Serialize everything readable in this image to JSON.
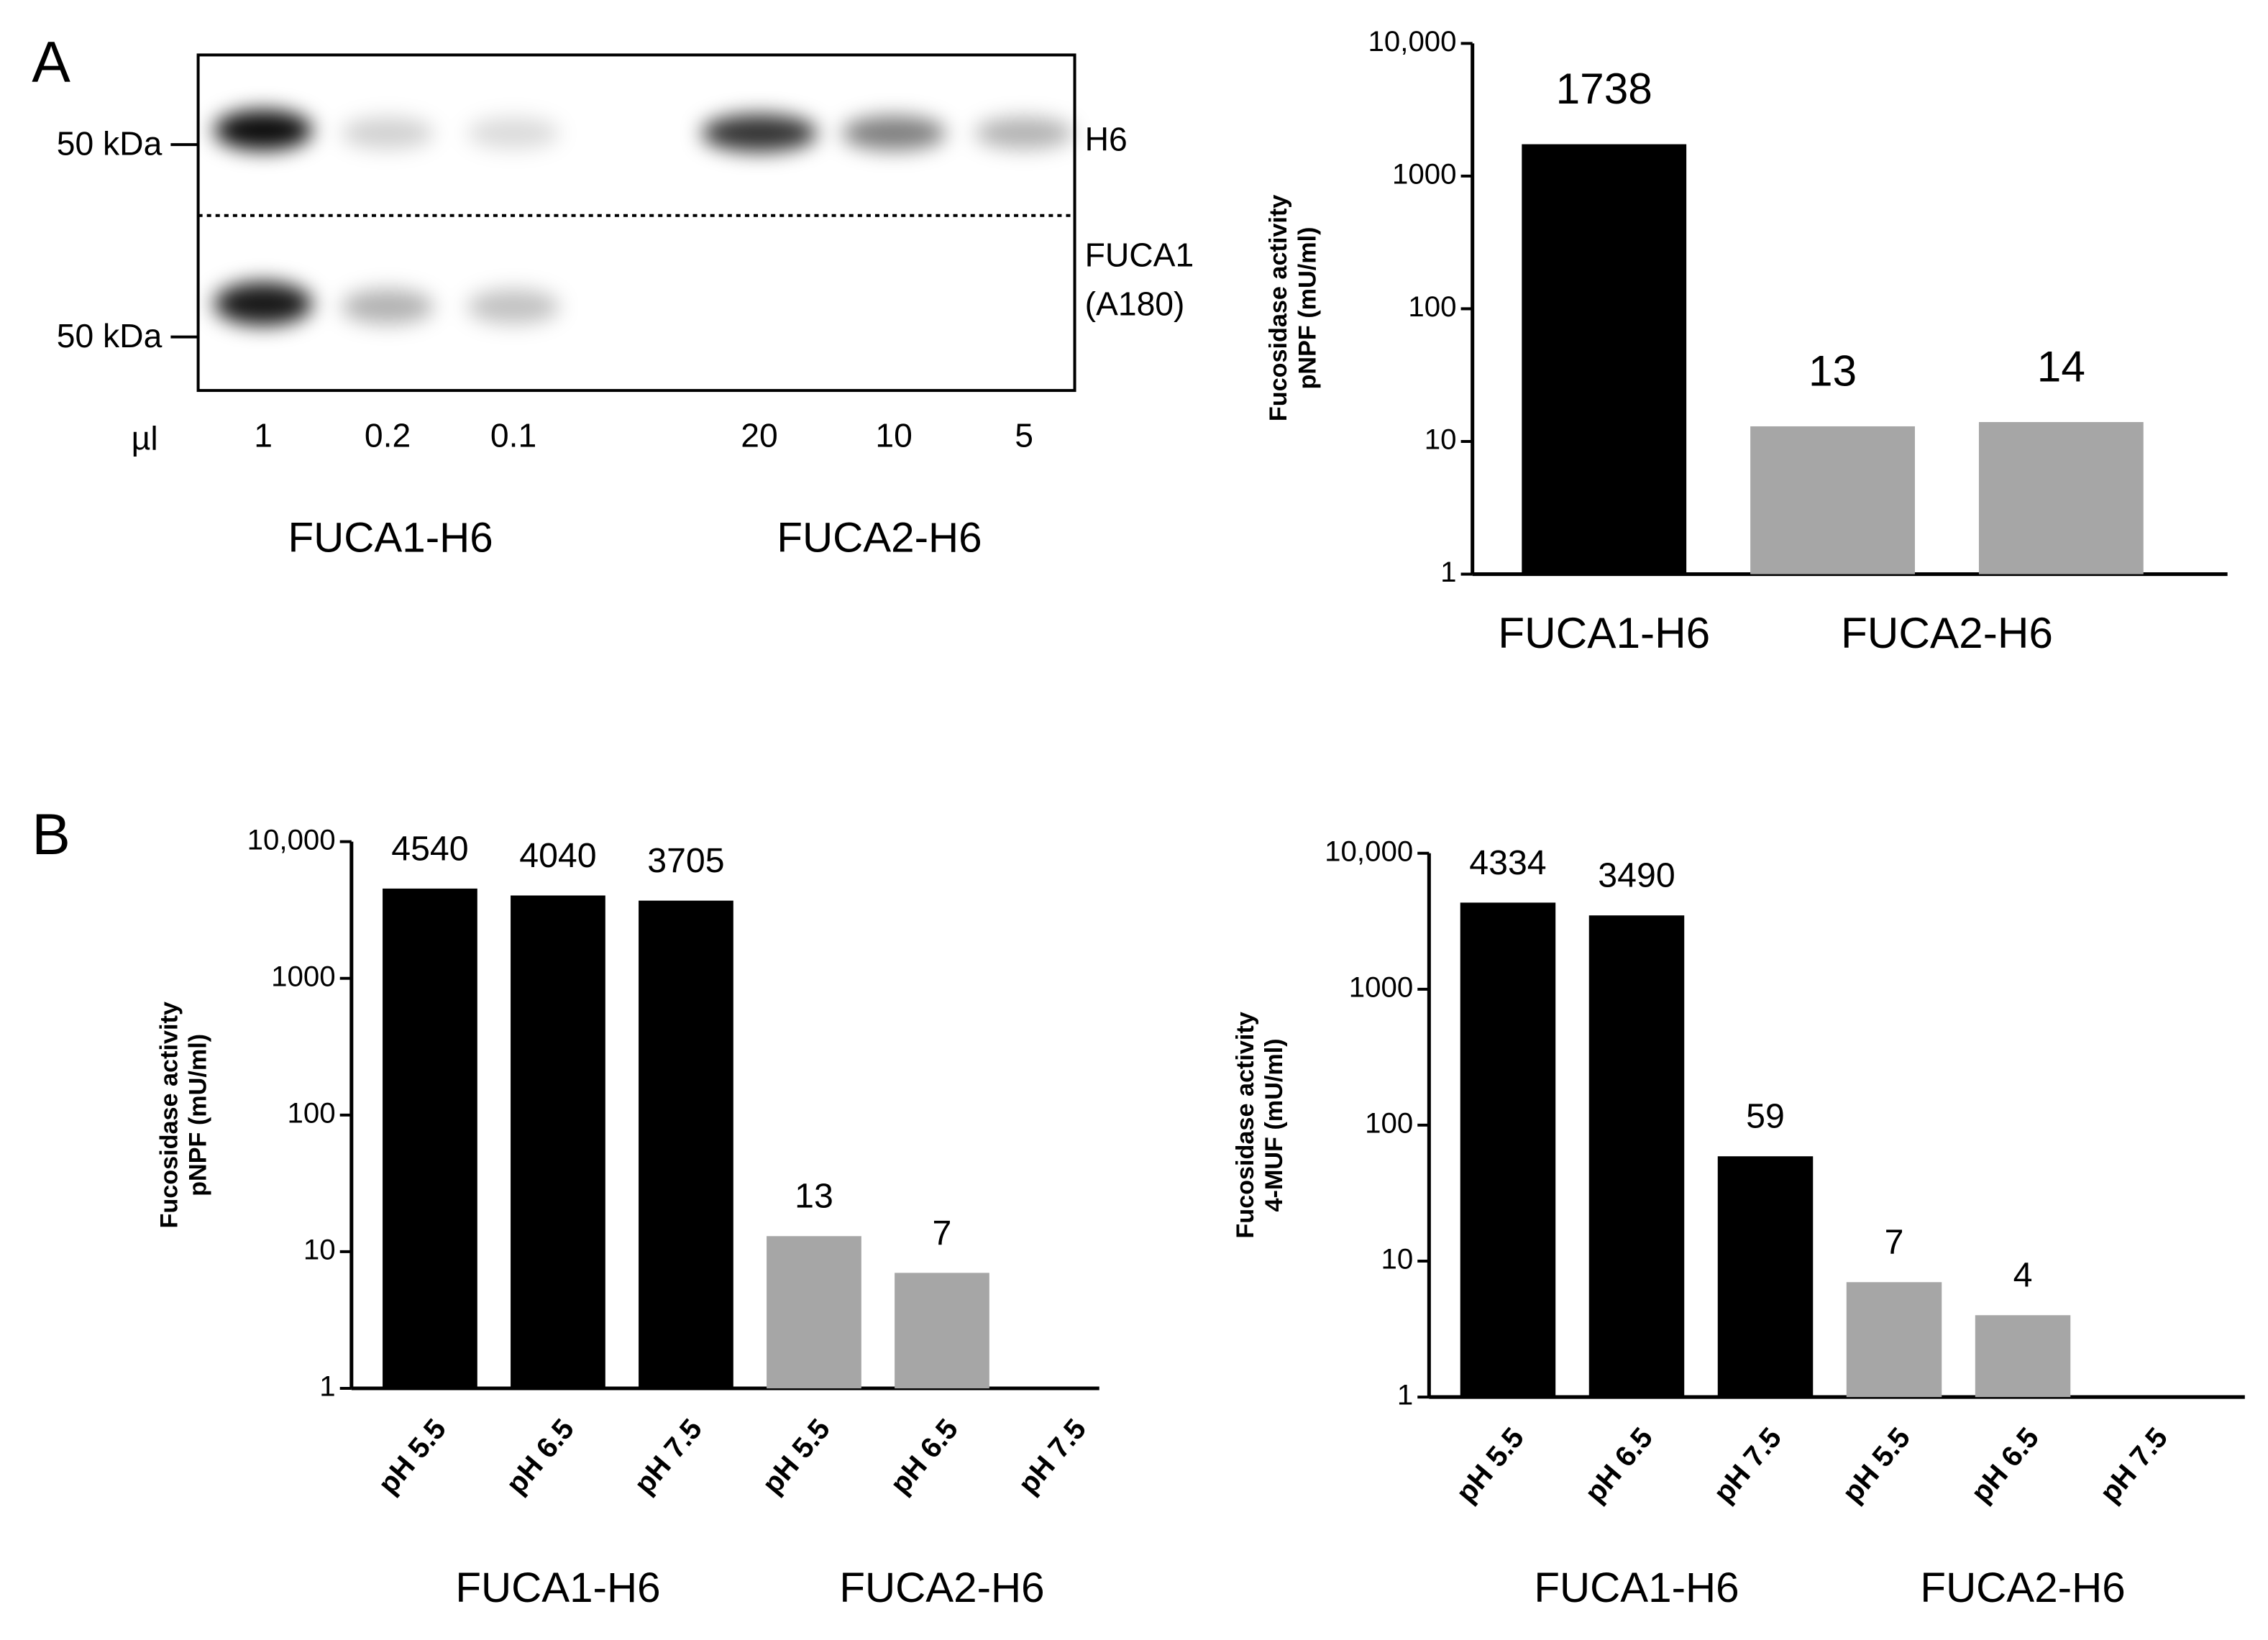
{
  "panel_labels": [
    "A",
    "B"
  ],
  "blot": {
    "markers": [
      "50 kDa",
      "50 kDa"
    ],
    "right_labels": [
      "H6",
      "FUCA1",
      "(A180)"
    ],
    "volume_label": "µl",
    "lanes": [
      "1",
      "0.2",
      "0.1",
      "20",
      "10",
      "5"
    ],
    "groups": [
      "FUCA1-H6",
      "FUCA2-H6"
    ]
  },
  "chart_data": [
    {
      "type": "bar",
      "ylabel": [
        "Fucosidase activity",
        "pNPF (mU/ml)"
      ],
      "categories": [
        null,
        null,
        null
      ],
      "groups": [
        {
          "label": "FUCA1-H6",
          "members": [
            0
          ]
        },
        {
          "label": "FUCA2-H6",
          "members": [
            1,
            2
          ]
        }
      ],
      "values": [
        1738,
        13,
        14
      ],
      "colors": [
        "#000000",
        "#a6a6a6",
        "#a6a6a6"
      ],
      "log": true,
      "ylim": [
        1,
        10000
      ],
      "yticks": [
        1,
        10,
        100,
        1000,
        {
          "value": 10000,
          "label": "10,000"
        }
      ]
    },
    {
      "type": "bar",
      "ylabel": [
        "Fucosidase activity",
        "pNPF (mU/ml)"
      ],
      "categories": [
        "pH 5.5",
        "pH 6.5",
        "pH 7.5",
        "pH 5.5",
        "pH 6.5",
        "pH 7.5"
      ],
      "groups": [
        {
          "label": "FUCA1-H6",
          "members": [
            0,
            1,
            2
          ]
        },
        {
          "label": "FUCA2-H6",
          "members": [
            3,
            4,
            5
          ]
        }
      ],
      "values": [
        4540,
        4040,
        3705,
        13,
        7,
        null
      ],
      "colors": [
        "#000000",
        "#000000",
        "#000000",
        "#a6a6a6",
        "#a6a6a6",
        "#a6a6a6"
      ],
      "log": true,
      "ylim": [
        1,
        10000
      ],
      "yticks": [
        1,
        10,
        100,
        1000,
        {
          "value": 10000,
          "label": "10,000"
        }
      ]
    },
    {
      "type": "bar",
      "ylabel": [
        "Fucosidase activity",
        "4-MUF (mU/ml)"
      ],
      "categories": [
        "pH 5.5",
        "pH 6.5",
        "pH 7.5",
        "pH 5.5",
        "pH 6.5",
        "pH 7.5"
      ],
      "groups": [
        {
          "label": "FUCA1-H6",
          "members": [
            0,
            1,
            2
          ]
        },
        {
          "label": "FUCA2-H6",
          "members": [
            3,
            4,
            5
          ]
        }
      ],
      "values": [
        4334,
        3490,
        59,
        7,
        4,
        null
      ],
      "colors": [
        "#000000",
        "#000000",
        "#000000",
        "#a6a6a6",
        "#a6a6a6",
        "#a6a6a6"
      ],
      "log": true,
      "ylim": [
        1,
        10000
      ],
      "yticks": [
        1,
        10,
        100,
        1000,
        {
          "value": 10000,
          "label": "10,000"
        }
      ]
    }
  ]
}
